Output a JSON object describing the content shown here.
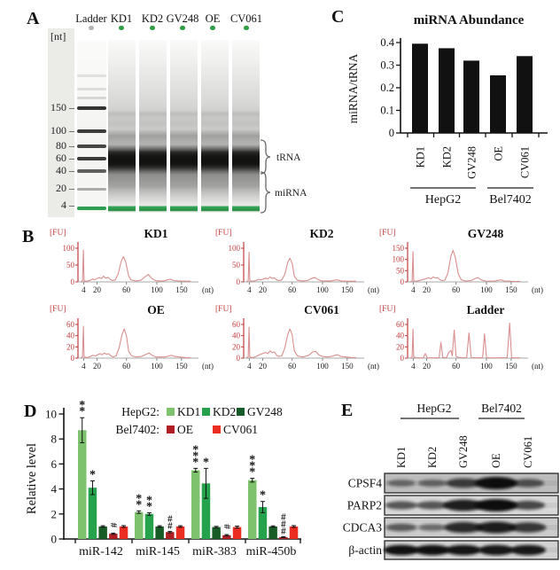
{
  "panels": {
    "a": {
      "label": "A",
      "unit_label": "[nt]",
      "lane_headers": [
        "Ladder",
        "KD1",
        "KD2",
        "GV248",
        "OE",
        "CV061"
      ],
      "marker_values": [
        "150",
        "100",
        "80",
        "60",
        "40",
        "20",
        "4"
      ],
      "bracket_labels": [
        "tRNA",
        "miRNA"
      ],
      "ladder_dot_color": "#b5b5b0",
      "sample_dot_color": "#2f9e43",
      "gel_green": "#2e9e4f"
    },
    "b": {
      "label": "B"
    },
    "c": {
      "label": "C"
    },
    "d": {
      "label": "D"
    },
    "e": {
      "label": "E",
      "groups": [
        {
          "name": "HepG2",
          "lanes": [
            "KD1",
            "KD2",
            "GV248"
          ]
        },
        {
          "name": "Bel7402",
          "lanes": [
            "OE",
            "CV061"
          ]
        }
      ],
      "rows": [
        {
          "protein": "CPSF4",
          "intensities": [
            0.32,
            0.35,
            0.65,
            1.0,
            0.5
          ]
        },
        {
          "protein": "PARP2",
          "intensities": [
            0.5,
            0.5,
            0.88,
            1.0,
            0.6
          ]
        },
        {
          "protein": "CDCA3",
          "intensities": [
            0.45,
            0.32,
            0.8,
            0.88,
            0.7
          ]
        },
        {
          "protein": "β-actin",
          "intensities": [
            0.97,
            0.97,
            0.95,
            0.93,
            0.92
          ]
        }
      ]
    }
  },
  "chart_data": [
    {
      "id": "mirna-abundance",
      "panel": "C",
      "type": "bar",
      "title": "miRNA Abundance",
      "ylabel": "miRNA/tRNA",
      "categories": [
        "KD1",
        "KD2",
        "GV248",
        "OE",
        "CV061"
      ],
      "values": [
        0.395,
        0.375,
        0.32,
        0.255,
        0.34
      ],
      "yticks": [
        0,
        0.1,
        0.2,
        0.3,
        0.4
      ],
      "ylim": [
        0,
        0.42
      ],
      "bar_color": "#111111",
      "cell_line_groups": [
        {
          "label": "HepG2",
          "from": 0,
          "to": 2
        },
        {
          "label": "Bel7402",
          "from": 3,
          "to": 4
        }
      ]
    },
    {
      "id": "relative-level",
      "panel": "D",
      "type": "grouped-bar",
      "ylabel": "Relative level",
      "categories": [
        "miR-142",
        "miR-145",
        "miR-383",
        "miR-450b"
      ],
      "yticks": [
        0,
        2,
        4,
        6,
        8,
        10
      ],
      "ylim": [
        0,
        10.5
      ],
      "series": [
        {
          "name": "KD1",
          "cell_line": "HepG2",
          "color": "#7fc26e",
          "values": [
            8.7,
            2.15,
            5.5,
            4.7
          ],
          "errors": [
            1.0,
            0.1,
            0.15,
            0.15
          ],
          "sig": [
            "**",
            "**",
            "***",
            "***"
          ]
        },
        {
          "name": "KD2",
          "cell_line": "HepG2",
          "color": "#27a24c",
          "values": [
            4.1,
            2.0,
            4.45,
            2.55
          ],
          "errors": [
            0.55,
            0.1,
            1.2,
            0.45
          ],
          "sig": [
            "*",
            "**",
            "*",
            "*"
          ]
        },
        {
          "name": "GV248",
          "cell_line": "HepG2",
          "color": "#175c26",
          "values": [
            1.0,
            1.0,
            0.95,
            1.0
          ],
          "errors": [
            0.06,
            0.06,
            0.06,
            0.05
          ],
          "sig": [
            "",
            "",
            "",
            ""
          ]
        },
        {
          "name": "OE",
          "cell_line": "Bel7402",
          "color": "#b01e23",
          "values": [
            0.42,
            0.55,
            0.3,
            0.15
          ],
          "errors": [
            0.05,
            0.06,
            0.05,
            0.04
          ],
          "sig": [
            "#",
            "##",
            "#",
            "###"
          ]
        },
        {
          "name": "CV061",
          "cell_line": "Bel7402",
          "color": "#ea2c21",
          "values": [
            1.0,
            1.0,
            0.95,
            1.0
          ],
          "errors": [
            0.07,
            0.06,
            0.08,
            0.07
          ],
          "sig": [
            "",
            "",
            "",
            ""
          ]
        }
      ],
      "legend": [
        {
          "prefix": "HepG2:",
          "items": [
            "KD1",
            "KD2",
            "GV248"
          ]
        },
        {
          "prefix": "Bel7402:",
          "items": [
            "OE",
            "CV061"
          ]
        }
      ]
    },
    {
      "id": "trace-kd1",
      "panel": "B",
      "type": "line",
      "title": "KD1",
      "fu_label": "[FU]",
      "yticks": [
        0,
        50,
        100
      ],
      "xticks": [
        4,
        20,
        60,
        100,
        150
      ],
      "x_unit": "(nt)",
      "points": [
        [
          2,
          1
        ],
        [
          3.2,
          3
        ],
        [
          3.8,
          95
        ],
        [
          4.5,
          3
        ],
        [
          8,
          2
        ],
        [
          12,
          5
        ],
        [
          15,
          9
        ],
        [
          17,
          6
        ],
        [
          20,
          10
        ],
        [
          23,
          13
        ],
        [
          26,
          10
        ],
        [
          29,
          17
        ],
        [
          32,
          11
        ],
        [
          35,
          14
        ],
        [
          38,
          7
        ],
        [
          41,
          4
        ],
        [
          45,
          6
        ],
        [
          49,
          25
        ],
        [
          53,
          62
        ],
        [
          56,
          75
        ],
        [
          59,
          60
        ],
        [
          63,
          18
        ],
        [
          66,
          6
        ],
        [
          72,
          3
        ],
        [
          79,
          5
        ],
        [
          85,
          16
        ],
        [
          89,
          22
        ],
        [
          93,
          11
        ],
        [
          98,
          4
        ],
        [
          106,
          3
        ],
        [
          114,
          3
        ],
        [
          122,
          6
        ],
        [
          128,
          8
        ],
        [
          134,
          4
        ],
        [
          144,
          3
        ],
        [
          156,
          2
        ],
        [
          168,
          2
        ]
      ]
    },
    {
      "id": "trace-kd2",
      "panel": "B",
      "type": "line",
      "title": "KD2",
      "fu_label": "[FU]",
      "yticks": [
        0,
        50,
        100
      ],
      "xticks": [
        4,
        20,
        60,
        100,
        150
      ],
      "x_unit": "(nt)",
      "points": [
        [
          2,
          1
        ],
        [
          3.2,
          3
        ],
        [
          3.8,
          88
        ],
        [
          4.5,
          3
        ],
        [
          8,
          2
        ],
        [
          12,
          4
        ],
        [
          15,
          8
        ],
        [
          18,
          6
        ],
        [
          21,
          9
        ],
        [
          24,
          11
        ],
        [
          27,
          9
        ],
        [
          30,
          15
        ],
        [
          33,
          10
        ],
        [
          36,
          12
        ],
        [
          39,
          6
        ],
        [
          42,
          4
        ],
        [
          46,
          6
        ],
        [
          50,
          22
        ],
        [
          54,
          58
        ],
        [
          57,
          70
        ],
        [
          60,
          55
        ],
        [
          63,
          16
        ],
        [
          67,
          5
        ],
        [
          73,
          3
        ],
        [
          80,
          4
        ],
        [
          86,
          11
        ],
        [
          90,
          13
        ],
        [
          94,
          7
        ],
        [
          99,
          3
        ],
        [
          108,
          3
        ],
        [
          117,
          3
        ],
        [
          124,
          5
        ],
        [
          130,
          6
        ],
        [
          137,
          3
        ],
        [
          147,
          2
        ],
        [
          160,
          2
        ],
        [
          168,
          2
        ]
      ]
    },
    {
      "id": "trace-gv248",
      "panel": "B",
      "type": "line",
      "title": "GV248",
      "fu_label": "[FU]",
      "yticks": [
        0,
        50,
        100,
        150
      ],
      "xticks": [
        4,
        20,
        60,
        100,
        150
      ],
      "x_unit": "(nt)",
      "points": [
        [
          2,
          1
        ],
        [
          3.2,
          4
        ],
        [
          3.8,
          135
        ],
        [
          4.5,
          4
        ],
        [
          8,
          3
        ],
        [
          12,
          7
        ],
        [
          16,
          11
        ],
        [
          20,
          15
        ],
        [
          23,
          18
        ],
        [
          26,
          14
        ],
        [
          29,
          22
        ],
        [
          32,
          17
        ],
        [
          35,
          19
        ],
        [
          38,
          10
        ],
        [
          41,
          6
        ],
        [
          45,
          8
        ],
        [
          49,
          40
        ],
        [
          53,
          115
        ],
        [
          56,
          140
        ],
        [
          59,
          110
        ],
        [
          63,
          35
        ],
        [
          67,
          9
        ],
        [
          73,
          4
        ],
        [
          80,
          6
        ],
        [
          85,
          15
        ],
        [
          89,
          19
        ],
        [
          93,
          9
        ],
        [
          99,
          4
        ],
        [
          108,
          3
        ],
        [
          117,
          4
        ],
        [
          124,
          7
        ],
        [
          130,
          9
        ],
        [
          136,
          4
        ],
        [
          146,
          3
        ],
        [
          158,
          2
        ],
        [
          168,
          2
        ]
      ]
    },
    {
      "id": "trace-oe",
      "panel": "B",
      "type": "line",
      "title": "OE",
      "fu_label": "[FU]",
      "yticks": [
        0,
        20,
        40,
        60
      ],
      "xticks": [
        4,
        20,
        60,
        100,
        150
      ],
      "x_unit": "(nt)",
      "points": [
        [
          2,
          1
        ],
        [
          3.2,
          2
        ],
        [
          3.8,
          57
        ],
        [
          4.5,
          2
        ],
        [
          8,
          1
        ],
        [
          12,
          3
        ],
        [
          15,
          5
        ],
        [
          18,
          4
        ],
        [
          21,
          6
        ],
        [
          24,
          8
        ],
        [
          27,
          6
        ],
        [
          30,
          9
        ],
        [
          33,
          7
        ],
        [
          36,
          8
        ],
        [
          39,
          4
        ],
        [
          42,
          2
        ],
        [
          46,
          4
        ],
        [
          50,
          18
        ],
        [
          54,
          42
        ],
        [
          57,
          52
        ],
        [
          60,
          40
        ],
        [
          63,
          12
        ],
        [
          67,
          4
        ],
        [
          73,
          2
        ],
        [
          80,
          3
        ],
        [
          86,
          7
        ],
        [
          90,
          9
        ],
        [
          94,
          5
        ],
        [
          99,
          2
        ],
        [
          108,
          2
        ],
        [
          117,
          2
        ],
        [
          124,
          4
        ],
        [
          130,
          5
        ],
        [
          136,
          3
        ],
        [
          146,
          2
        ],
        [
          158,
          1
        ],
        [
          168,
          1
        ]
      ]
    },
    {
      "id": "trace-cv061",
      "panel": "B",
      "type": "line",
      "title": "CV061",
      "fu_label": "[FU]",
      "yticks": [
        0,
        20,
        40,
        60
      ],
      "xticks": [
        4,
        20,
        60,
        100,
        150
      ],
      "x_unit": "(nt)",
      "points": [
        [
          2,
          1
        ],
        [
          3.2,
          2
        ],
        [
          3.8,
          55
        ],
        [
          4.5,
          2
        ],
        [
          8,
          1
        ],
        [
          12,
          3
        ],
        [
          16,
          6
        ],
        [
          20,
          8
        ],
        [
          24,
          10
        ],
        [
          27,
          8
        ],
        [
          30,
          13
        ],
        [
          33,
          10
        ],
        [
          36,
          11
        ],
        [
          39,
          5
        ],
        [
          42,
          3
        ],
        [
          46,
          4
        ],
        [
          50,
          18
        ],
        [
          54,
          42
        ],
        [
          57,
          52
        ],
        [
          60,
          42
        ],
        [
          63,
          13
        ],
        [
          67,
          4
        ],
        [
          74,
          2
        ],
        [
          82,
          5
        ],
        [
          87,
          11
        ],
        [
          91,
          12
        ],
        [
          95,
          6
        ],
        [
          100,
          3
        ],
        [
          109,
          2
        ],
        [
          118,
          3
        ],
        [
          125,
          5
        ],
        [
          131,
          6
        ],
        [
          137,
          3
        ],
        [
          147,
          2
        ],
        [
          159,
          1
        ],
        [
          168,
          1
        ]
      ]
    },
    {
      "id": "trace-ladder",
      "panel": "B",
      "type": "line",
      "title": "Ladder",
      "fu_label": "[FU]",
      "yticks": [
        0,
        20,
        40,
        60
      ],
      "xticks": [
        4,
        20,
        60,
        100,
        150
      ],
      "x_unit": "(nt)",
      "points": [
        [
          2,
          0.5
        ],
        [
          3.2,
          2
        ],
        [
          3.8,
          52
        ],
        [
          4.5,
          2
        ],
        [
          8,
          0.5
        ],
        [
          16,
          0.5
        ],
        [
          18.5,
          8
        ],
        [
          21,
          0.5
        ],
        [
          28,
          0.5
        ],
        [
          37,
          1
        ],
        [
          39.5,
          28
        ],
        [
          42,
          1
        ],
        [
          47,
          1
        ],
        [
          50,
          10
        ],
        [
          53,
          14
        ],
        [
          55,
          4
        ],
        [
          57.5,
          50
        ],
        [
          60,
          3
        ],
        [
          64,
          1
        ],
        [
          74,
          1
        ],
        [
          77,
          45
        ],
        [
          80,
          1
        ],
        [
          86,
          0.5
        ],
        [
          95,
          1
        ],
        [
          97.5,
          43
        ],
        [
          100,
          1
        ],
        [
          108,
          0.5
        ],
        [
          125,
          0.5
        ],
        [
          142,
          1
        ],
        [
          147,
          62
        ],
        [
          151,
          1
        ],
        [
          158,
          0.5
        ],
        [
          168,
          0.5
        ]
      ]
    }
  ]
}
